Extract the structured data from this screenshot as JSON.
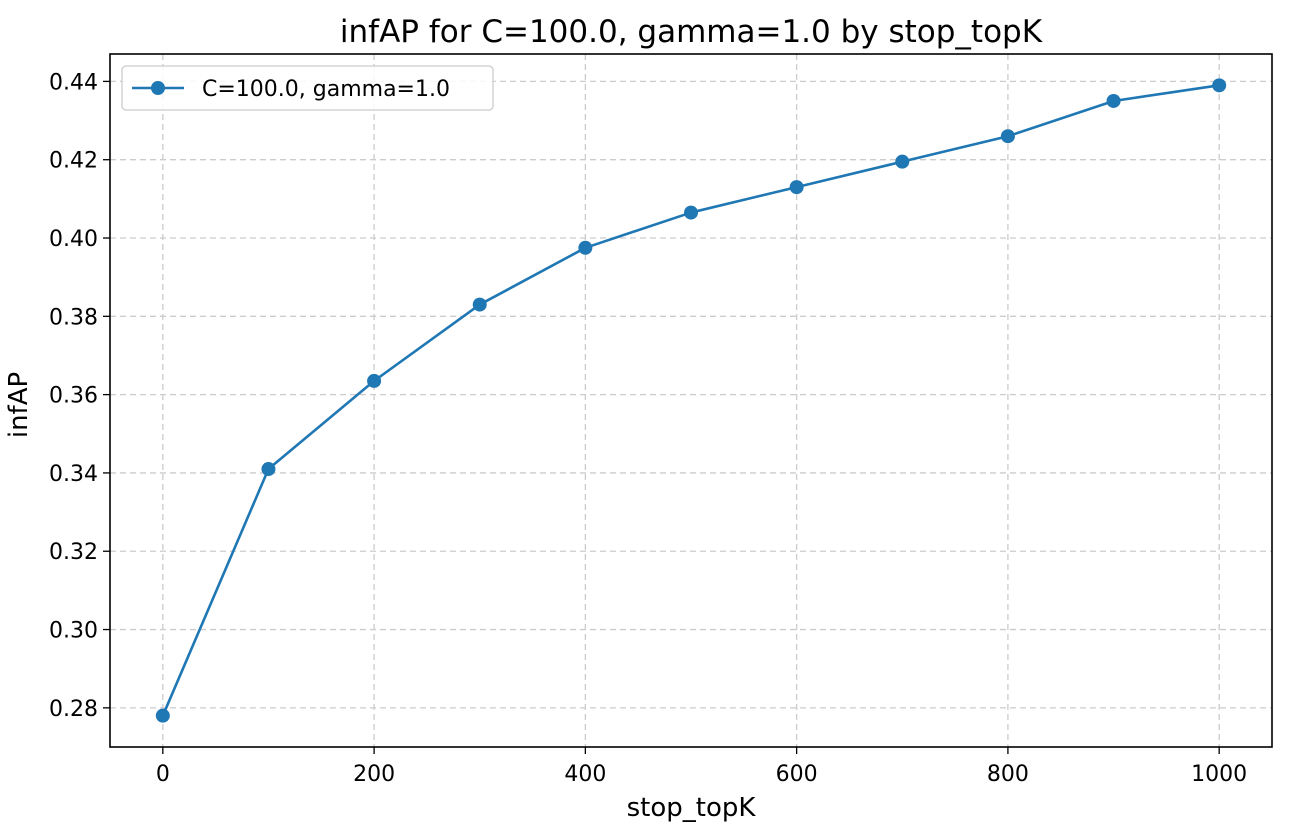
{
  "chart_data": {
    "type": "line",
    "title": "infAP for C=100.0, gamma=1.0 by stop_topK",
    "xlabel": "stop_topK",
    "ylabel": "infAP",
    "xlim": [
      -50,
      1050
    ],
    "ylim": [
      0.27,
      0.447
    ],
    "xticks": [
      0,
      200,
      400,
      600,
      800,
      1000
    ],
    "yticks": [
      0.28,
      0.3,
      0.32,
      0.34,
      0.36,
      0.38,
      0.4,
      0.42,
      0.44
    ],
    "grid": true,
    "legend_position": "top-left",
    "series": [
      {
        "name": "C=100.0, gamma=1.0",
        "color": "#1f77b4",
        "marker": "circle",
        "x": [
          0,
          100,
          200,
          300,
          400,
          500,
          600,
          700,
          800,
          900,
          1000
        ],
        "y": [
          0.278,
          0.341,
          0.3635,
          0.383,
          0.3975,
          0.4065,
          0.413,
          0.4195,
          0.426,
          0.435,
          0.439
        ]
      }
    ]
  }
}
